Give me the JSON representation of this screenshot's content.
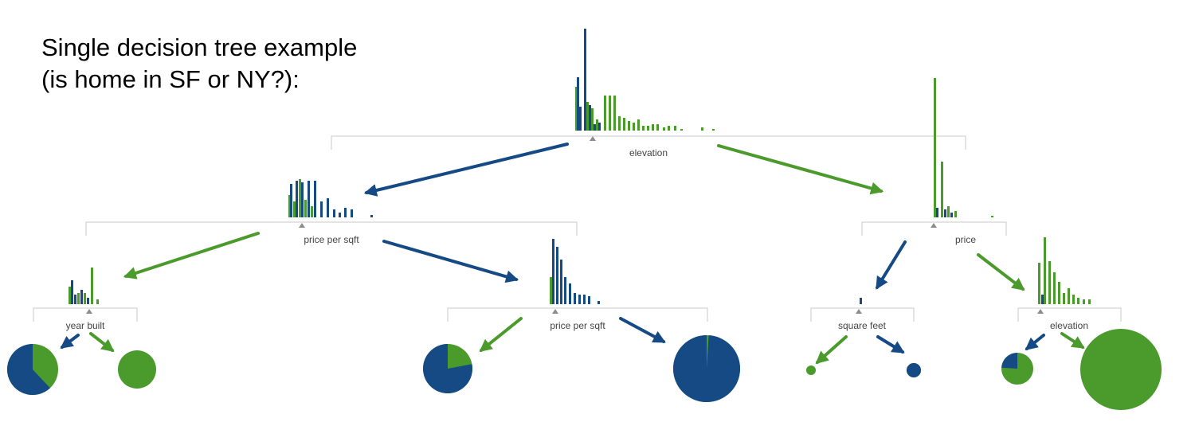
{
  "title": {
    "line1": "Single decision tree example",
    "line2": "(is home in SF or NY?):"
  },
  "colors": {
    "ny": "#154a84",
    "sf": "#4a9a2c",
    "bracket": "#c8c8c8",
    "marker": "#8c8c8c",
    "label": "#444444"
  },
  "nodes": {
    "root": {
      "label": "elevation"
    },
    "left": {
      "label": "price per sqft"
    },
    "right": {
      "label": "price"
    },
    "left_left": {
      "label": "year built"
    },
    "left_right": {
      "label": "price per sqft"
    },
    "right_left": {
      "label": "square feet"
    },
    "right_right": {
      "label": "elevation"
    }
  },
  "leaves": [
    {
      "id": "leaf-1",
      "ny_share": 0.62
    },
    {
      "id": "leaf-2",
      "ny_share": 0.0
    },
    {
      "id": "leaf-3",
      "ny_share": 0.78
    },
    {
      "id": "leaf-4",
      "ny_share": 0.99
    },
    {
      "id": "leaf-5",
      "ny_share": 0.0
    },
    {
      "id": "leaf-6",
      "ny_share": 1.0
    },
    {
      "id": "leaf-7",
      "ny_share": 0.24
    },
    {
      "id": "leaf-8",
      "ny_share": 0.0
    }
  ]
}
